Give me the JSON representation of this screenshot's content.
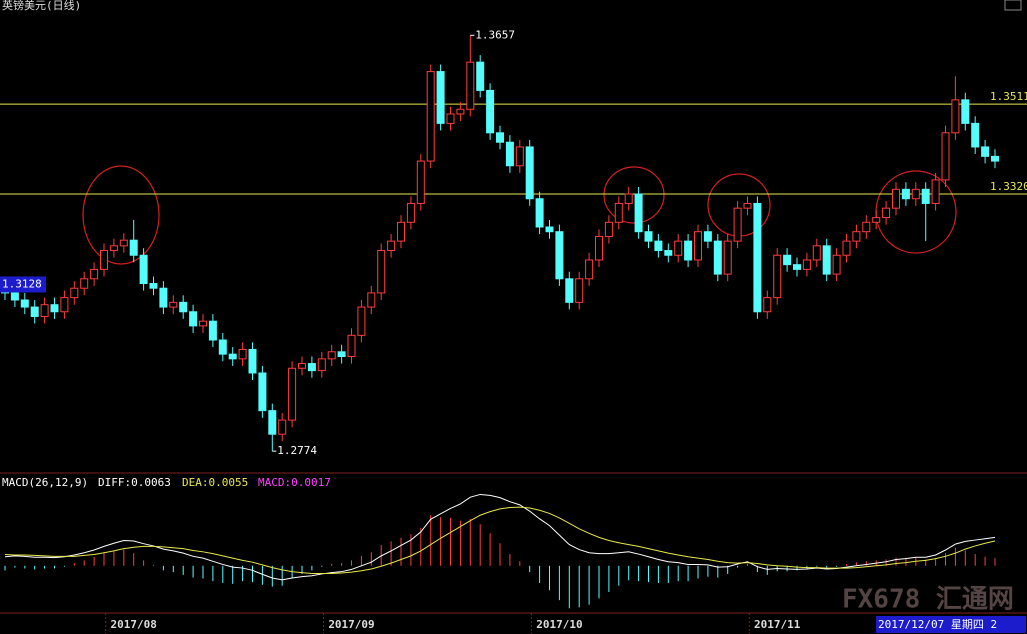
{
  "chart_data": {
    "type": "candlestick",
    "title": "英镑美元(日线)",
    "date_box": "2017/12/07 星期四 2",
    "watermark": "FX678 汇通网",
    "up_color": "#ff3c3c",
    "down_color": "#54fcfc",
    "ylim": [
      1.2734,
      1.3732
    ],
    "levels": [
      {
        "value": 1.3511,
        "label": "1.3511"
      },
      {
        "value": 1.332,
        "label": "1.3320"
      }
    ],
    "level_color": "#e8e84a",
    "price_marker": 1.3128,
    "high_index": 47,
    "low_index": 27,
    "categories": [
      null,
      null,
      null,
      null,
      null,
      null,
      null,
      null,
      null,
      null,
      null,
      null,
      null,
      "2017/08",
      null,
      null,
      null,
      null,
      null,
      null,
      null,
      null,
      null,
      null,
      null,
      null,
      null,
      null,
      null,
      null,
      null,
      null,
      null,
      null,
      null,
      "2017/09",
      null,
      null,
      null,
      null,
      null,
      null,
      null,
      null,
      null,
      null,
      null,
      null,
      null,
      null,
      null,
      null,
      null,
      null,
      null,
      null,
      "2017/10",
      null,
      null,
      null,
      null,
      null,
      null,
      null,
      null,
      null,
      null,
      null,
      null,
      null,
      null,
      null,
      null,
      null,
      null,
      null,
      null,
      null,
      "2017/11",
      null,
      null,
      null,
      null,
      null,
      null,
      null,
      null,
      null,
      null,
      null,
      null,
      null,
      null,
      null,
      null,
      null,
      null,
      null,
      null,
      null,
      null
    ],
    "ohlc": [
      [
        1.313,
        1.3145,
        1.3095,
        1.311
      ],
      [
        1.311,
        1.3125,
        1.308,
        1.3095
      ],
      [
        1.3095,
        1.311,
        1.3065,
        1.308
      ],
      [
        1.308,
        1.3095,
        1.3045,
        1.306
      ],
      [
        1.306,
        1.31,
        1.3045,
        1.3085
      ],
      [
        1.3085,
        1.31,
        1.3055,
        1.307
      ],
      [
        1.307,
        1.3115,
        1.3055,
        1.31
      ],
      [
        1.31,
        1.3135,
        1.3085,
        1.312
      ],
      [
        1.312,
        1.3155,
        1.3105,
        1.314
      ],
      [
        1.314,
        1.3175,
        1.3125,
        1.316
      ],
      [
        1.316,
        1.3215,
        1.3145,
        1.32
      ],
      [
        1.32,
        1.3225,
        1.3185,
        1.321
      ],
      [
        1.321,
        1.3237,
        1.3195,
        1.3222
      ],
      [
        1.3222,
        1.3265,
        1.3175,
        1.319
      ],
      [
        1.319,
        1.3205,
        1.3115,
        1.313
      ],
      [
        1.313,
        1.3145,
        1.3105,
        1.312
      ],
      [
        1.312,
        1.3135,
        1.3065,
        1.308
      ],
      [
        1.308,
        1.3105,
        1.3065,
        1.309
      ],
      [
        1.309,
        1.3105,
        1.3055,
        1.307
      ],
      [
        1.307,
        1.3085,
        1.3025,
        1.304
      ],
      [
        1.304,
        1.3065,
        1.3025,
        1.305
      ],
      [
        1.305,
        1.3065,
        1.2995,
        1.301
      ],
      [
        1.301,
        1.3025,
        1.2965,
        1.298
      ],
      [
        1.298,
        1.2995,
        1.2955,
        1.297
      ],
      [
        1.297,
        1.3005,
        1.2955,
        1.299
      ],
      [
        1.299,
        1.3005,
        1.2925,
        1.294
      ],
      [
        1.294,
        1.2955,
        1.2845,
        1.286
      ],
      [
        1.286,
        1.2875,
        1.2774,
        1.281
      ],
      [
        1.281,
        1.2855,
        1.2795,
        1.284
      ],
      [
        1.284,
        1.2965,
        1.2825,
        1.295
      ],
      [
        1.295,
        1.2975,
        1.2935,
        1.296
      ],
      [
        1.296,
        1.2975,
        1.293,
        1.2945
      ],
      [
        1.2945,
        1.2985,
        1.293,
        1.297
      ],
      [
        1.297,
        1.3,
        1.2955,
        1.2985
      ],
      [
        1.2985,
        1.3,
        1.296,
        1.2975
      ],
      [
        1.2975,
        1.3035,
        1.296,
        1.302
      ],
      [
        1.302,
        1.3095,
        1.3005,
        1.308
      ],
      [
        1.308,
        1.3125,
        1.3065,
        1.311
      ],
      [
        1.311,
        1.3215,
        1.3095,
        1.32
      ],
      [
        1.32,
        1.3235,
        1.3185,
        1.322
      ],
      [
        1.322,
        1.3275,
        1.3205,
        1.326
      ],
      [
        1.326,
        1.3315,
        1.3245,
        1.33
      ],
      [
        1.33,
        1.3405,
        1.3285,
        1.339
      ],
      [
        1.339,
        1.3595,
        1.3375,
        1.358
      ],
      [
        1.358,
        1.3595,
        1.3455,
        1.347
      ],
      [
        1.347,
        1.3505,
        1.3455,
        1.349
      ],
      [
        1.349,
        1.3515,
        1.3475,
        1.35
      ],
      [
        1.35,
        1.3657,
        1.3485,
        1.36
      ],
      [
        1.36,
        1.3615,
        1.3525,
        1.354
      ],
      [
        1.354,
        1.3555,
        1.3435,
        1.345
      ],
      [
        1.345,
        1.3465,
        1.3415,
        1.343
      ],
      [
        1.343,
        1.3445,
        1.3365,
        1.338
      ],
      [
        1.338,
        1.3435,
        1.3365,
        1.342
      ],
      [
        1.342,
        1.3435,
        1.3295,
        1.331
      ],
      [
        1.331,
        1.3325,
        1.3235,
        1.325
      ],
      [
        1.325,
        1.3265,
        1.3225,
        1.324
      ],
      [
        1.324,
        1.3255,
        1.3125,
        1.314
      ],
      [
        1.314,
        1.3155,
        1.3075,
        1.309
      ],
      [
        1.309,
        1.3155,
        1.3075,
        1.314
      ],
      [
        1.314,
        1.3195,
        1.3125,
        1.318
      ],
      [
        1.318,
        1.3245,
        1.3165,
        1.323
      ],
      [
        1.323,
        1.3275,
        1.3215,
        1.326
      ],
      [
        1.326,
        1.3315,
        1.3245,
        1.33
      ],
      [
        1.33,
        1.3335,
        1.3285,
        1.332
      ],
      [
        1.332,
        1.3335,
        1.3225,
        1.324
      ],
      [
        1.324,
        1.3255,
        1.3205,
        1.322
      ],
      [
        1.322,
        1.3235,
        1.3185,
        1.32
      ],
      [
        1.32,
        1.3215,
        1.3175,
        1.319
      ],
      [
        1.319,
        1.3235,
        1.3175,
        1.322
      ],
      [
        1.322,
        1.3235,
        1.3165,
        1.318
      ],
      [
        1.318,
        1.3255,
        1.3165,
        1.324
      ],
      [
        1.324,
        1.3255,
        1.3205,
        1.322
      ],
      [
        1.322,
        1.3235,
        1.3135,
        1.315
      ],
      [
        1.315,
        1.3235,
        1.3135,
        1.322
      ],
      [
        1.322,
        1.3305,
        1.3205,
        1.329
      ],
      [
        1.329,
        1.3315,
        1.3275,
        1.33
      ],
      [
        1.33,
        1.3315,
        1.3055,
        1.307
      ],
      [
        1.307,
        1.3115,
        1.3055,
        1.31
      ],
      [
        1.31,
        1.3205,
        1.3085,
        1.319
      ],
      [
        1.319,
        1.3205,
        1.3155,
        1.317
      ],
      [
        1.317,
        1.3185,
        1.3145,
        1.316
      ],
      [
        1.316,
        1.3195,
        1.3145,
        1.318
      ],
      [
        1.318,
        1.3225,
        1.3165,
        1.321
      ],
      [
        1.321,
        1.3225,
        1.3135,
        1.315
      ],
      [
        1.315,
        1.3205,
        1.3135,
        1.319
      ],
      [
        1.319,
        1.3235,
        1.3175,
        1.322
      ],
      [
        1.322,
        1.3255,
        1.3205,
        1.324
      ],
      [
        1.324,
        1.3275,
        1.3225,
        1.326
      ],
      [
        1.326,
        1.3285,
        1.3245,
        1.327
      ],
      [
        1.327,
        1.3305,
        1.3255,
        1.329
      ],
      [
        1.329,
        1.3345,
        1.3275,
        1.333
      ],
      [
        1.333,
        1.3345,
        1.3295,
        1.331
      ],
      [
        1.331,
        1.3345,
        1.3295,
        1.333
      ],
      [
        1.333,
        1.3345,
        1.322,
        1.33
      ],
      [
        1.33,
        1.3365,
        1.3285,
        1.335
      ],
      [
        1.335,
        1.3465,
        1.3335,
        1.345
      ],
      [
        1.345,
        1.357,
        1.3435,
        1.352
      ],
      [
        1.352,
        1.3535,
        1.3455,
        1.347
      ],
      [
        1.347,
        1.3485,
        1.3405,
        1.342
      ],
      [
        1.342,
        1.3435,
        1.3385,
        1.34
      ],
      [
        1.34,
        1.3415,
        1.3375,
        1.339
      ]
    ],
    "macd": {
      "title": "MACD(26,12,9)",
      "diff_label": "DIFF:0.0063",
      "dea_label": "DEA:0.0055",
      "macd_label": "MACD:0.0017",
      "ylim": [
        -0.012,
        0.019
      ],
      "diff_color": "#ffffff",
      "dea_color": "#e8e84a",
      "label_color": "#ff40ff",
      "diff": [
        0.002,
        0.0022,
        0.0021,
        0.0019,
        0.0019,
        0.0018,
        0.002,
        0.0024,
        0.0029,
        0.0035,
        0.0043,
        0.005,
        0.0056,
        0.0055,
        0.0049,
        0.0044,
        0.0037,
        0.0033,
        0.0028,
        0.0021,
        0.0017,
        0.001,
        0.0003,
        -0.0003,
        -0.0005,
        -0.001,
        -0.0019,
        -0.0027,
        -0.0031,
        -0.0027,
        -0.0024,
        -0.0022,
        -0.0018,
        -0.0015,
        -0.0013,
        -0.0008,
        0.0,
        0.0008,
        0.0022,
        0.0033,
        0.0045,
        0.0057,
        0.0075,
        0.0103,
        0.0115,
        0.0127,
        0.0137,
        0.0152,
        0.0158,
        0.0156,
        0.0151,
        0.0142,
        0.0135,
        0.0121,
        0.0104,
        0.0089,
        0.0068,
        0.0047,
        0.0036,
        0.0029,
        0.0027,
        0.0027,
        0.0029,
        0.0031,
        0.0026,
        0.002,
        0.0014,
        0.0009,
        0.0007,
        0.0003,
        0.0003,
        0.0002,
        -0.0003,
        -0.0002,
        0.0004,
        0.0009,
        -0.0002,
        -0.0008,
        -0.0006,
        -0.0007,
        -0.0008,
        -0.0007,
        -0.0005,
        -0.0007,
        -0.0006,
        -0.0003,
        0.0,
        0.0003,
        0.0006,
        0.0009,
        0.0014,
        0.0016,
        0.0019,
        0.0019,
        0.0024,
        0.0035,
        0.0048,
        0.0054,
        0.0057,
        0.006,
        0.0063
      ],
      "dea": [
        0.0025,
        0.0024,
        0.0024,
        0.0023,
        0.0022,
        0.0021,
        0.0021,
        0.0021,
        0.0023,
        0.0025,
        0.0029,
        0.0033,
        0.0038,
        0.0041,
        0.0043,
        0.0043,
        0.0042,
        0.004,
        0.0038,
        0.0034,
        0.0031,
        0.0027,
        0.0022,
        0.0017,
        0.0012,
        0.0008,
        0.0002,
        -0.0004,
        -0.0009,
        -0.0013,
        -0.0015,
        -0.0017,
        -0.0017,
        -0.0017,
        -0.0016,
        -0.0014,
        -0.0011,
        -0.0007,
        -0.0001,
        0.0006,
        0.0014,
        0.0022,
        0.0033,
        0.0047,
        0.0061,
        0.0074,
        0.0087,
        0.01,
        0.0112,
        0.012,
        0.0126,
        0.0129,
        0.013,
        0.0128,
        0.0123,
        0.0116,
        0.0106,
        0.0094,
        0.0082,
        0.0072,
        0.0063,
        0.0056,
        0.0051,
        0.0047,
        0.0043,
        0.0038,
        0.0033,
        0.0028,
        0.0024,
        0.002,
        0.0017,
        0.0014,
        0.001,
        0.0007,
        0.0006,
        0.0007,
        0.0005,
        0.0002,
        0.0,
        -0.0001,
        -0.0003,
        -0.0004,
        -0.0004,
        -0.0005,
        -0.0005,
        -0.0005,
        -0.0004,
        -0.0002,
        0.0,
        0.0002,
        0.0005,
        0.0007,
        0.001,
        0.0012,
        0.0016,
        0.0021,
        0.0028,
        0.0037,
        0.0044,
        0.005,
        0.0055
      ],
      "hist": [
        -0.001,
        -0.0004,
        -0.0006,
        -0.0008,
        -0.0006,
        -0.0006,
        -0.0002,
        0.0006,
        0.0012,
        0.002,
        0.0028,
        0.0034,
        0.0036,
        0.0028,
        0.0012,
        0.0002,
        -0.001,
        -0.0014,
        -0.002,
        -0.0026,
        -0.0028,
        -0.0034,
        -0.0038,
        -0.004,
        -0.0034,
        -0.0036,
        -0.0042,
        -0.0046,
        -0.0044,
        -0.0028,
        -0.0018,
        -0.001,
        -0.0002,
        0.0004,
        0.0006,
        0.0012,
        0.0022,
        0.003,
        0.0046,
        0.0054,
        0.0062,
        0.007,
        0.0084,
        0.0112,
        0.0108,
        0.0106,
        0.01,
        0.0104,
        0.0092,
        0.0072,
        0.005,
        0.0026,
        0.001,
        -0.0014,
        -0.0038,
        -0.0054,
        -0.0076,
        -0.0094,
        -0.0092,
        -0.0086,
        -0.0072,
        -0.0058,
        -0.0044,
        -0.0032,
        -0.0034,
        -0.0036,
        -0.0038,
        -0.0038,
        -0.0034,
        -0.0034,
        -0.0028,
        -0.0024,
        -0.0026,
        -0.0018,
        -0.0004,
        0.0004,
        -0.0014,
        -0.002,
        -0.0012,
        -0.0012,
        -0.001,
        -0.0006,
        -0.0002,
        -0.0004,
        -0.0002,
        0.0004,
        0.0008,
        0.001,
        0.0012,
        0.0014,
        0.0018,
        0.0018,
        0.0018,
        0.0014,
        0.0016,
        0.0028,
        0.004,
        0.0034,
        0.0026,
        0.002,
        0.0017
      ]
    }
  }
}
